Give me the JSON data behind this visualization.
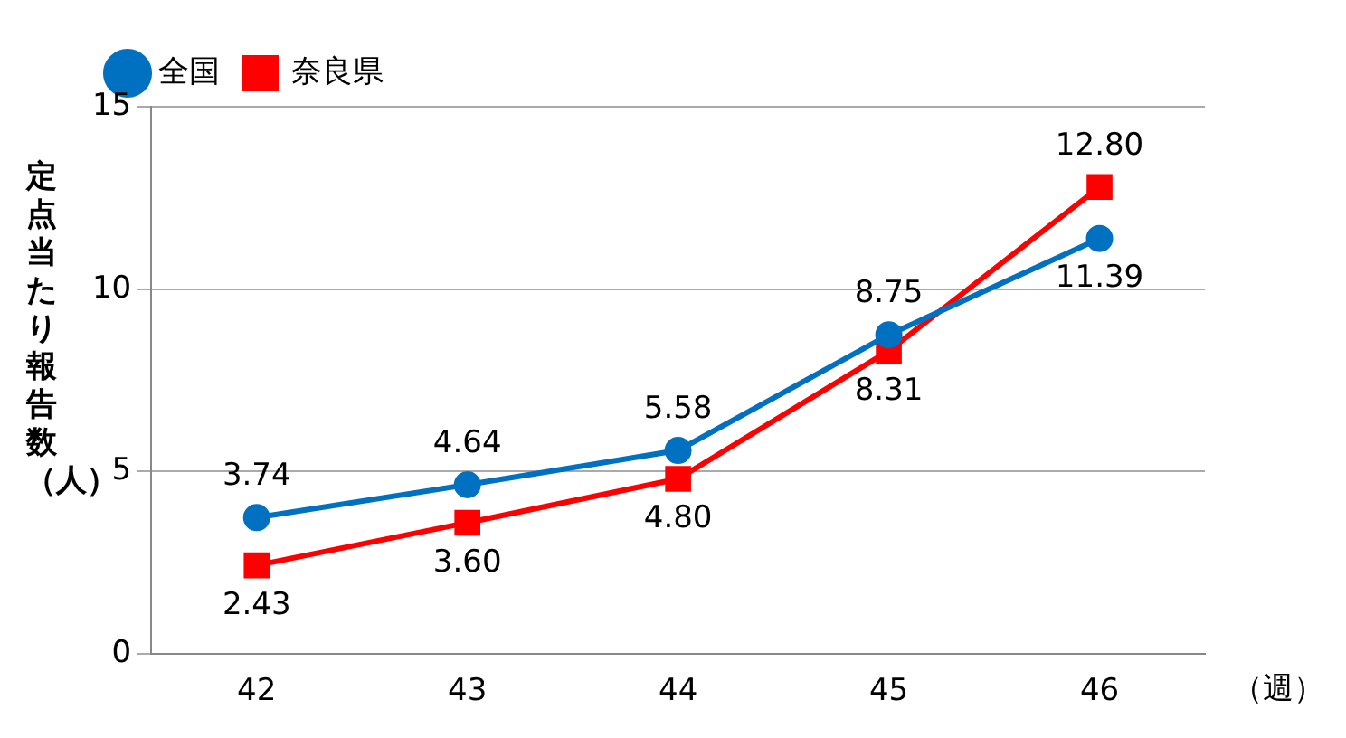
{
  "chart_data": {
    "type": "line",
    "ylabel": "定点当たり報告数（人）",
    "xlabel": "（週）",
    "categories": [
      "42",
      "43",
      "44",
      "45",
      "46"
    ],
    "series": [
      {
        "name": "全国",
        "color": "#0070c0",
        "values": [
          3.74,
          4.64,
          5.58,
          8.75,
          11.39
        ],
        "value_labels": [
          "3.74",
          "4.64",
          "5.58",
          "8.75",
          "11.39"
        ],
        "marker": "circle"
      },
      {
        "name": "奈良県",
        "color": "#ff0000",
        "values": [
          2.43,
          3.6,
          4.8,
          8.31,
          12.8
        ],
        "value_labels": [
          "2.43",
          "3.60",
          "4.80",
          "8.31",
          "12.80"
        ],
        "marker": "square"
      }
    ],
    "ylim": [
      0,
      15
    ],
    "yticks": [
      0,
      5,
      10,
      15
    ],
    "grid": "y",
    "legend": "top left",
    "line_style": "solid"
  }
}
